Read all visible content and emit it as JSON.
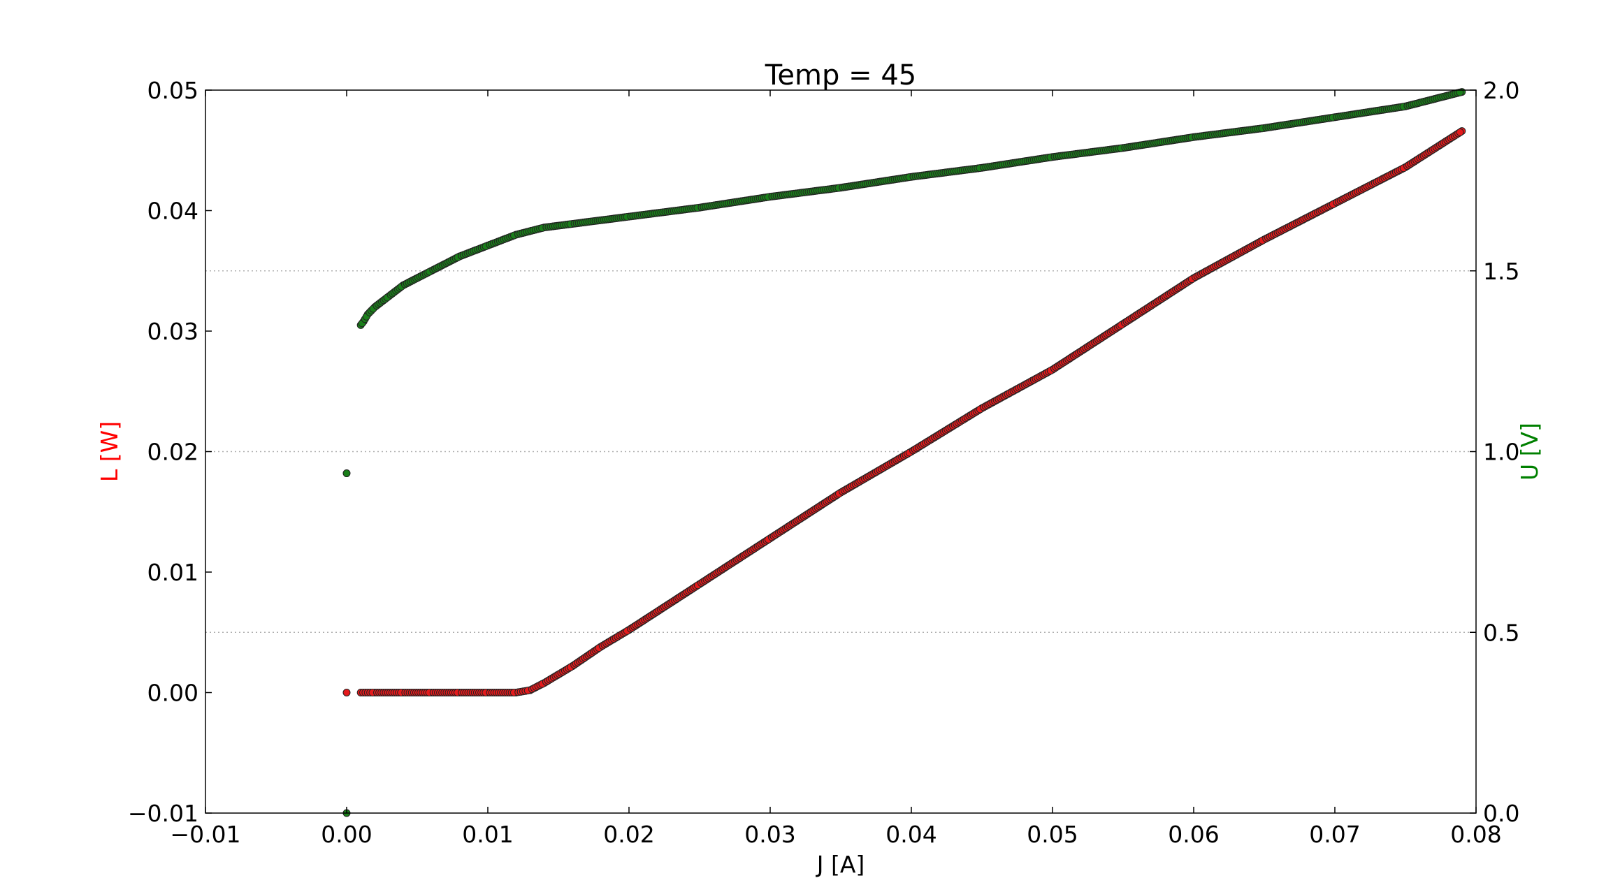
{
  "chart_data": {
    "type": "scatter",
    "title": "Temp = 45",
    "xlabel": "J [A]",
    "ylabel_left": "L [W]",
    "ylabel_right": "U [V]",
    "xlim": [
      -0.01,
      0.08
    ],
    "ylim_left": [
      -0.01,
      0.05
    ],
    "ylim_right": [
      0.0,
      2.0
    ],
    "x_ticks": [
      "−0.01",
      "0.00",
      "0.01",
      "0.02",
      "0.03",
      "0.04",
      "0.05",
      "0.06",
      "0.07",
      "0.08"
    ],
    "y_left_ticks": [
      "−0.01",
      "0.00",
      "0.01",
      "0.02",
      "0.03",
      "0.04",
      "0.05"
    ],
    "y_right_ticks": [
      "0.0",
      "0.5",
      "1.0",
      "1.5",
      "2.0"
    ],
    "grid": "right-axis horizontal dotted",
    "colors": {
      "L": "#e41a1c",
      "U": "#1a7f1a",
      "marker_edge": "#222222",
      "ylabel_left": "#ff0000",
      "ylabel_right": "#008000"
    },
    "series": [
      {
        "axis": "left",
        "points": [
          [
            0.0,
            0.0
          ],
          [
            0.001,
            0.0
          ],
          [
            0.002,
            0.0
          ],
          [
            0.004,
            0.0
          ],
          [
            0.006,
            0.0
          ],
          [
            0.008,
            0.0
          ],
          [
            0.01,
            0.0
          ],
          [
            0.012,
            0.0
          ],
          [
            0.013,
            0.0002
          ],
          [
            0.014,
            0.0008
          ],
          [
            0.016,
            0.0022
          ],
          [
            0.018,
            0.0038
          ],
          [
            0.02,
            0.0052
          ],
          [
            0.025,
            0.009
          ],
          [
            0.03,
            0.0128
          ],
          [
            0.035,
            0.0166
          ],
          [
            0.04,
            0.02
          ],
          [
            0.045,
            0.0236
          ],
          [
            0.05,
            0.0268
          ],
          [
            0.055,
            0.0306
          ],
          [
            0.06,
            0.0344
          ],
          [
            0.065,
            0.0376
          ],
          [
            0.07,
            0.0406
          ],
          [
            0.075,
            0.0436
          ],
          [
            0.079,
            0.0466
          ]
        ]
      },
      {
        "axis": "right",
        "points": [
          [
            0.0,
            0.0
          ],
          [
            0.0,
            0.94
          ],
          [
            0.001,
            1.35
          ],
          [
            0.0012,
            1.36
          ],
          [
            0.0015,
            1.38
          ],
          [
            0.002,
            1.4
          ],
          [
            0.003,
            1.43
          ],
          [
            0.004,
            1.46
          ],
          [
            0.006,
            1.5
          ],
          [
            0.008,
            1.54
          ],
          [
            0.01,
            1.57
          ],
          [
            0.012,
            1.6
          ],
          [
            0.014,
            1.62
          ],
          [
            0.016,
            1.63
          ],
          [
            0.02,
            1.65
          ],
          [
            0.025,
            1.675
          ],
          [
            0.03,
            1.705
          ],
          [
            0.035,
            1.73
          ],
          [
            0.04,
            1.76
          ],
          [
            0.045,
            1.785
          ],
          [
            0.05,
            1.815
          ],
          [
            0.055,
            1.84
          ],
          [
            0.06,
            1.87
          ],
          [
            0.065,
            1.895
          ],
          [
            0.07,
            1.925
          ],
          [
            0.075,
            1.955
          ],
          [
            0.079,
            1.995
          ]
        ]
      }
    ]
  }
}
